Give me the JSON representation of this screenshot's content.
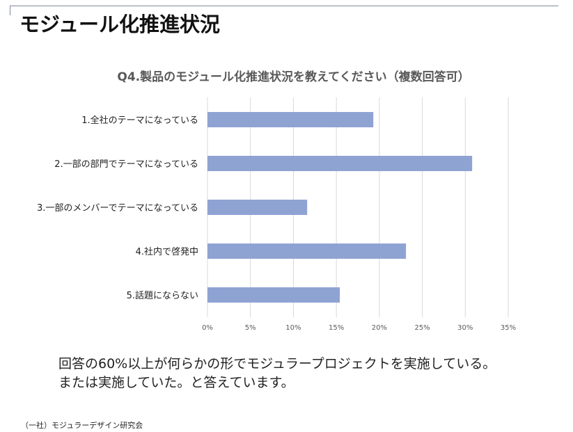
{
  "page": {
    "title": "モジュール化推進状況",
    "summary_lines": [
      "回答の60%以上が何らかの形でモジュラープロジェクトを実施している。",
      "または実施していた。と答えています。"
    ],
    "footer": "（一社）モジュラーデザイン研究会"
  },
  "colors": {
    "bar": "#8fa3d3",
    "grid": "#d9d9d9",
    "label": "#222222",
    "tick": "#595959"
  },
  "chart_data": {
    "type": "bar",
    "orientation": "horizontal",
    "title": "Q4.製品のモジュール化推進状況を教えてください（複数回答可）",
    "categories": [
      "1.全社のテーマになっている",
      "2.一部の部門でテーマになっている",
      "3.一部のメンバーでテーマになっている",
      "4.社内で啓発中",
      "5.話題にならない"
    ],
    "values": [
      19.3,
      30.8,
      11.6,
      23.1,
      15.4
    ],
    "unit": "%",
    "xlim": [
      0,
      35
    ],
    "xticks": [
      "0%",
      "5%",
      "10%",
      "15%",
      "20%",
      "25%",
      "30%",
      "35%"
    ],
    "grid": true,
    "legend": "none"
  }
}
